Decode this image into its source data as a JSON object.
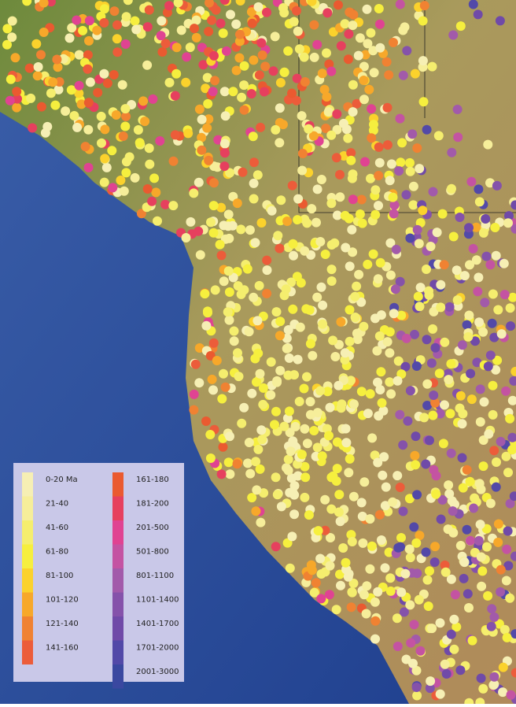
{
  "legend": {
    "columns": [
      [
        {
          "label": "0-20 Ma",
          "color": "#f6efb4"
        },
        {
          "label": "21-40",
          "color": "#f6ee9a"
        },
        {
          "label": "41-60",
          "color": "#f5ee6e"
        },
        {
          "label": "61-80",
          "color": "#f6ef3e"
        },
        {
          "label": "81-100",
          "color": "#fbd22c"
        },
        {
          "label": "101-120",
          "color": "#f7a82a"
        },
        {
          "label": "121-140",
          "color": "#f08232"
        },
        {
          "label": "141-160",
          "color": "#ec5c3a"
        }
      ],
      [
        {
          "label": "161-180",
          "color": "#ea5a30"
        },
        {
          "label": "181-200",
          "color": "#e6405e"
        },
        {
          "label": "201-500",
          "color": "#e04392"
        },
        {
          "label": "501-800",
          "color": "#c453a2"
        },
        {
          "label": "801-1100",
          "color": "#a25aaa"
        },
        {
          "label": "1101-1400",
          "color": "#8552aa"
        },
        {
          "label": "1401-1700",
          "color": "#704aa8"
        },
        {
          "label": "1701-2000",
          "color": "#5249a8"
        },
        {
          "label": "2001-3000",
          "color": "#3a48a0"
        }
      ]
    ]
  }
}
